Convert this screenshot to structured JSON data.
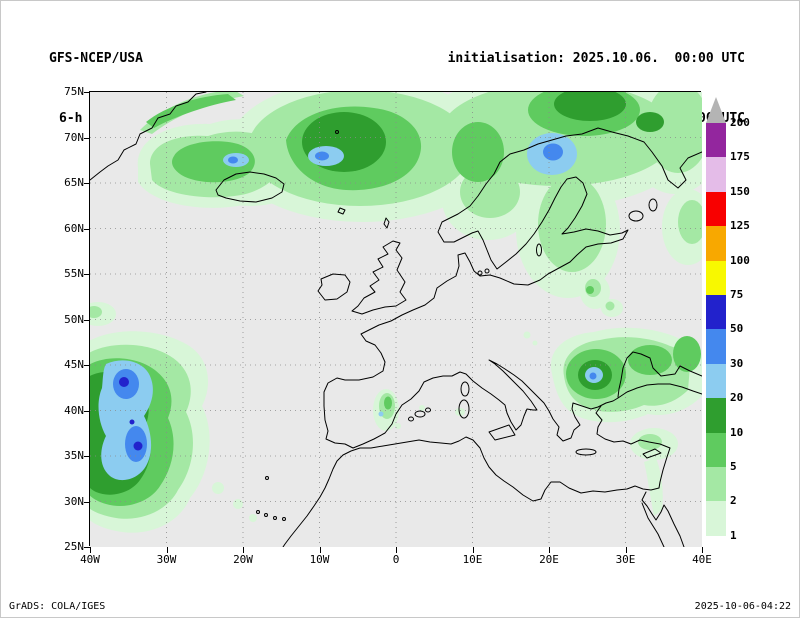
{
  "header": {
    "model": "GFS-NCEP/USA",
    "product": "6-h Acc.Prec.",
    "init_line": "initialisation: 2025.10.06.  00:00 UTC",
    "valid_line": "valid(+72h): 2025.OCT.09 00:00 UTC"
  },
  "map": {
    "background": "#e9e9e9",
    "coastline_color": "#000000",
    "lat_ticks": [
      "75N",
      "70N",
      "65N",
      "60N",
      "55N",
      "50N",
      "45N",
      "40N",
      "35N",
      "30N",
      "25N"
    ],
    "lon_ticks": [
      "40W",
      "30W",
      "20W",
      "10W",
      "0",
      "10E",
      "20E",
      "30E",
      "40E"
    ]
  },
  "colorbar": {
    "levels_top_to_bottom": [
      "200",
      "175",
      "150",
      "125",
      "100",
      "75",
      "50",
      "30",
      "20",
      "10",
      "5",
      "2",
      "1"
    ],
    "colors_bottom_to_top": [
      "#d8f6d8",
      "#a4e8a4",
      "#5fcb5f",
      "#2f9e2f",
      "#8cccf0",
      "#4488ee",
      "#2222cc",
      "#f8f800",
      "#f8a800",
      "#f80000",
      "#e4bce8",
      "#93269e"
    ],
    "above_max_color": "#b4b4b4"
  },
  "footer": {
    "left": "GrADS: COLA/IGES",
    "right": "2025-10-06-04:22"
  },
  "chart_data": {
    "type": "heatmap",
    "title": "GFS-NCEP/USA 6-h Acc.Prec.",
    "initialisation": "2025.10.06. 00:00 UTC",
    "valid": "(+72h) 2025.OCT.09 00:00 UTC",
    "x_ticks": [
      "40W",
      "30W",
      "20W",
      "10W",
      "0",
      "10E",
      "20E",
      "30E",
      "40E"
    ],
    "y_ticks": [
      "75N",
      "70N",
      "65N",
      "60N",
      "55N",
      "50N",
      "45N",
      "40N",
      "35N",
      "30N",
      "25N"
    ],
    "scale_levels": [
      1,
      2,
      5,
      10,
      20,
      30,
      50,
      75,
      100,
      125,
      150,
      175,
      200
    ],
    "shaded_regions": [
      {
        "location": "North Atlantic west of Iberia/Morocco (25-40W, 30-47N)",
        "peak_band": "50-75"
      },
      {
        "location": "Norwegian Sea and Iceland",
        "peak_band": "30-50"
      },
      {
        "location": "Northern Scandinavia / Finnmark",
        "peak_band": "10-20"
      },
      {
        "location": "Gulf of Bothnia / Sweden",
        "peak_band": "30-50"
      },
      {
        "location": "Baltic states and Belarus",
        "peak_band": "5-10"
      },
      {
        "location": "NE Turkey / eastern Black Sea / Caucasus",
        "peak_band": "30-50"
      },
      {
        "location": "Eastern Spain coast",
        "peak_band": "20-30"
      },
      {
        "location": "Cyprus and Levant coast",
        "peak_band": "2-5"
      }
    ]
  }
}
